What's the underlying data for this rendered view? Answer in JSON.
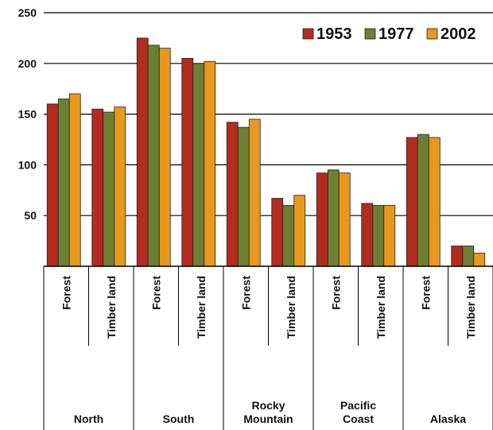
{
  "chart_data": {
    "type": "bar",
    "ylim": [
      0,
      250
    ],
    "yticks": [
      50,
      100,
      150,
      200,
      250
    ],
    "grid": true,
    "legend_placement": "top-right",
    "groups": [
      "North",
      "South",
      "Rocky Mountain",
      "Pacific Coast",
      "Alaska"
    ],
    "categories": [
      "Forest",
      "Timber land",
      "Forest",
      "Timber land",
      "Forest",
      "Timber land",
      "Forest",
      "Timber land",
      "Forest",
      "Timber land"
    ],
    "series": [
      {
        "name": "1953",
        "color": "#b42b1f",
        "values": [
          160,
          155,
          225,
          205,
          142,
          67,
          92,
          62,
          127,
          20
        ]
      },
      {
        "name": "1977",
        "color": "#6e7f33",
        "values": [
          165,
          152,
          218,
          200,
          137,
          60,
          95,
          60,
          130,
          20
        ]
      },
      {
        "name": "2002",
        "color": "#e8971f",
        "values": [
          170,
          157,
          215,
          202,
          145,
          70,
          92,
          60,
          127,
          13
        ]
      }
    ]
  }
}
